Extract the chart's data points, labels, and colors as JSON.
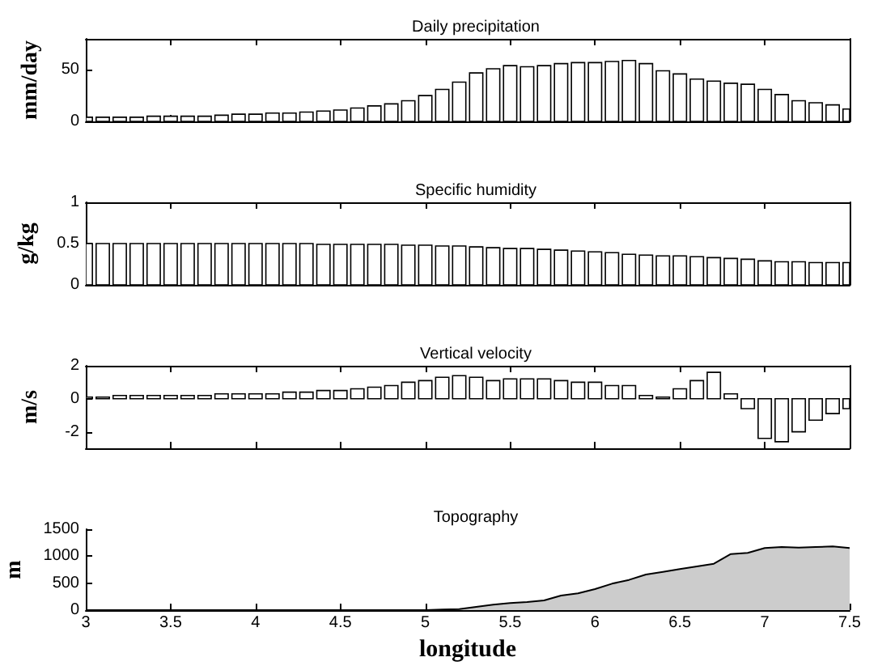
{
  "chart_data": [
    {
      "type": "bar",
      "title": "Daily precipitation",
      "ylabel": "mm/day",
      "tick_labels": "y",
      "grid": false,
      "xlim": [
        3,
        7.5
      ],
      "xticks": [
        3,
        3.5,
        4,
        4.5,
        5,
        5.5,
        6,
        6.5,
        7,
        7.5
      ],
      "ylim": [
        0,
        80
      ],
      "yticks": [
        0,
        50
      ],
      "x": [
        3.0,
        3.1,
        3.2,
        3.3,
        3.4,
        3.5,
        3.6,
        3.7,
        3.8,
        3.9,
        4.0,
        4.1,
        4.2,
        4.3,
        4.4,
        4.5,
        4.6,
        4.7,
        4.8,
        4.9,
        5.0,
        5.1,
        5.2,
        5.3,
        5.4,
        5.5,
        5.6,
        5.7,
        5.8,
        5.9,
        6.0,
        6.1,
        6.2,
        6.3,
        6.4,
        6.5,
        6.6,
        6.7,
        6.8,
        6.9,
        7.0,
        7.1,
        7.2,
        7.3,
        7.4,
        7.5
      ],
      "values": [
        4,
        4,
        4,
        4,
        5,
        5,
        5,
        5,
        6,
        7,
        7,
        8,
        8,
        9,
        10,
        11,
        13,
        15,
        17,
        20,
        25,
        31,
        38,
        47,
        51,
        54,
        53,
        54,
        56,
        57,
        57,
        58,
        59,
        56,
        49,
        46,
        41,
        39,
        37,
        36,
        31,
        26,
        20,
        18,
        16,
        12
      ],
      "color": "#ffffff"
    },
    {
      "type": "bar",
      "title": "Specific humidity",
      "ylabel": "g/kg",
      "tick_labels": "y",
      "grid": false,
      "xlim": [
        3,
        7.5
      ],
      "xticks": [
        3,
        3.5,
        4,
        4.5,
        5,
        5.5,
        6,
        6.5,
        7,
        7.5
      ],
      "ylim": [
        0,
        1
      ],
      "yticks": [
        0,
        0.5,
        1
      ],
      "x": [
        3.0,
        3.1,
        3.2,
        3.3,
        3.4,
        3.5,
        3.6,
        3.7,
        3.8,
        3.9,
        4.0,
        4.1,
        4.2,
        4.3,
        4.4,
        4.5,
        4.6,
        4.7,
        4.8,
        4.9,
        5.0,
        5.1,
        5.2,
        5.3,
        5.4,
        5.5,
        5.6,
        5.7,
        5.8,
        5.9,
        6.0,
        6.1,
        6.2,
        6.3,
        6.4,
        6.5,
        6.6,
        6.7,
        6.8,
        6.9,
        7.0,
        7.1,
        7.2,
        7.3,
        7.4,
        7.5
      ],
      "values": [
        0.5,
        0.5,
        0.5,
        0.5,
        0.5,
        0.5,
        0.5,
        0.5,
        0.5,
        0.5,
        0.5,
        0.5,
        0.5,
        0.5,
        0.49,
        0.49,
        0.49,
        0.49,
        0.49,
        0.48,
        0.48,
        0.47,
        0.47,
        0.46,
        0.45,
        0.44,
        0.44,
        0.43,
        0.42,
        0.41,
        0.4,
        0.39,
        0.37,
        0.36,
        0.35,
        0.35,
        0.34,
        0.33,
        0.32,
        0.31,
        0.29,
        0.28,
        0.28,
        0.27,
        0.27,
        0.27
      ],
      "color": "#ffffff"
    },
    {
      "type": "bar",
      "title": "Vertical velocity",
      "ylabel": "m/s",
      "tick_labels": "y",
      "grid": false,
      "xlim": [
        3,
        7.5
      ],
      "xticks": [
        3,
        3.5,
        4,
        4.5,
        5,
        5.5,
        6,
        6.5,
        7,
        7.5
      ],
      "ylim": [
        -3,
        2
      ],
      "yticks": [
        -2,
        0,
        2
      ],
      "x": [
        3.0,
        3.1,
        3.2,
        3.3,
        3.4,
        3.5,
        3.6,
        3.7,
        3.8,
        3.9,
        4.0,
        4.1,
        4.2,
        4.3,
        4.4,
        4.5,
        4.6,
        4.7,
        4.8,
        4.9,
        5.0,
        5.1,
        5.2,
        5.3,
        5.4,
        5.5,
        5.6,
        5.7,
        5.8,
        5.9,
        6.0,
        6.1,
        6.2,
        6.3,
        6.4,
        6.5,
        6.6,
        6.7,
        6.8,
        6.9,
        7.0,
        7.1,
        7.2,
        7.3,
        7.4,
        7.5
      ],
      "values": [
        0.1,
        0.1,
        0.2,
        0.2,
        0.2,
        0.2,
        0.2,
        0.2,
        0.3,
        0.3,
        0.3,
        0.3,
        0.4,
        0.4,
        0.5,
        0.5,
        0.6,
        0.7,
        0.8,
        1.0,
        1.1,
        1.3,
        1.4,
        1.3,
        1.1,
        1.2,
        1.2,
        1.2,
        1.1,
        1.0,
        1.0,
        0.8,
        0.8,
        0.2,
        0.1,
        0.6,
        1.1,
        1.6,
        0.3,
        -0.6,
        -2.4,
        -2.6,
        -2.0,
        -1.3,
        -0.9,
        -0.6
      ],
      "color": "#ffffff"
    },
    {
      "type": "area",
      "title": "Topography",
      "ylabel": "m",
      "xlabel": "longitude",
      "grid": false,
      "marker": "none",
      "xlim": [
        3,
        7.5
      ],
      "xticks": [
        3,
        3.5,
        4,
        4.5,
        5,
        5.5,
        6,
        6.5,
        7,
        7.5
      ],
      "ylim": [
        0,
        1500
      ],
      "yticks": [
        0,
        500,
        1000,
        1500
      ],
      "x": [
        3,
        5,
        5.1,
        5.2,
        5.3,
        5.4,
        5.5,
        5.6,
        5.7,
        5.8,
        5.9,
        6.0,
        6.1,
        6.2,
        6.3,
        6.4,
        6.5,
        6.6,
        6.7,
        6.8,
        6.9,
        7.0,
        7.1,
        7.2,
        7.3,
        7.4,
        7.5
      ],
      "values": [
        0,
        0,
        10,
        20,
        60,
        100,
        130,
        150,
        180,
        270,
        310,
        390,
        490,
        560,
        660,
        710,
        760,
        810,
        860,
        1040,
        1060,
        1150,
        1170,
        1160,
        1170,
        1180,
        1150
      ],
      "color": "#cccccc"
    }
  ]
}
